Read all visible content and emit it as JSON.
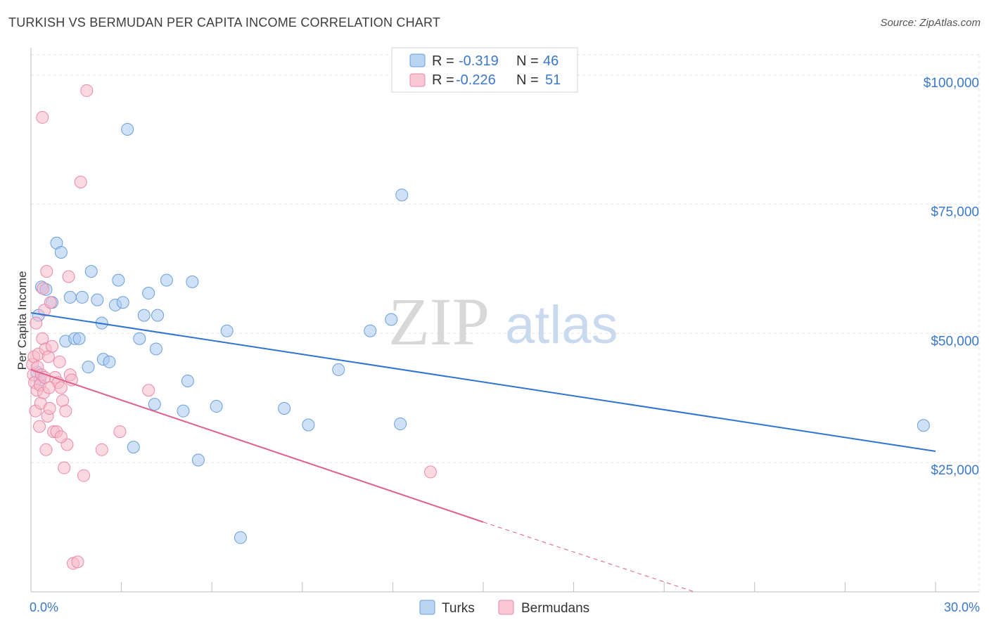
{
  "header": {
    "title": "TURKISH VS BERMUDAN PER CAPITA INCOME CORRELATION CHART",
    "source": "Source: ZipAtlas.com"
  },
  "watermark": {
    "zip": "ZIP",
    "atlas": "atlas"
  },
  "legend": {
    "r_label": "R =",
    "n_label": "N =",
    "rows": [
      {
        "name": "Turks",
        "r": "-0.319",
        "n": "46",
        "color": "#a8c8f0"
      },
      {
        "name": "Bermudans",
        "r": "-0.226",
        "n": "51",
        "color": "#f7b9cc"
      }
    ]
  },
  "colors": {
    "turks_fill": "#a8c8f0",
    "turks_stroke": "#6a9fdb",
    "turks_line": "#2f74d0",
    "bermudans_fill": "#f7b9cc",
    "bermudans_stroke": "#e98aa8",
    "bermudans_line": "#e0608a",
    "tick_text": "#3b78c9",
    "grid": "#e4e4e4"
  },
  "chart_data": {
    "type": "scatter",
    "title": "TURKISH VS BERMUDAN PER CAPITA INCOME CORRELATION CHART",
    "xlabel": "",
    "ylabel": "Per Capita Income",
    "xlim": [
      0,
      30
    ],
    "ylim": [
      0,
      105000
    ],
    "x_tick_labels": [
      "0.0%",
      "30.0%"
    ],
    "y_ticks": [
      25000,
      50000,
      75000,
      100000
    ],
    "y_tick_labels": [
      "$25,000",
      "$50,000",
      "$75,000",
      "$100,000"
    ],
    "grid": true,
    "legend_position": "top-center",
    "series": [
      {
        "name": "Turks",
        "points": [
          [
            0.25,
            53500
          ],
          [
            0.35,
            59000
          ],
          [
            0.5,
            58500
          ],
          [
            0.7,
            56000
          ],
          [
            0.85,
            67500
          ],
          [
            1.0,
            65700
          ],
          [
            1.15,
            48500
          ],
          [
            1.3,
            57000
          ],
          [
            1.45,
            49000
          ],
          [
            1.6,
            49000
          ],
          [
            1.7,
            57000
          ],
          [
            1.9,
            43500
          ],
          [
            2.0,
            62000
          ],
          [
            2.2,
            56500
          ],
          [
            2.35,
            52000
          ],
          [
            2.4,
            45000
          ],
          [
            2.6,
            44500
          ],
          [
            2.8,
            55500
          ],
          [
            2.9,
            60300
          ],
          [
            3.05,
            56000
          ],
          [
            3.2,
            89500
          ],
          [
            3.4,
            28000
          ],
          [
            3.6,
            49000
          ],
          [
            3.75,
            53500
          ],
          [
            3.9,
            57800
          ],
          [
            4.2,
            53500
          ],
          [
            4.1,
            36300
          ],
          [
            4.15,
            47000
          ],
          [
            4.5,
            60300
          ],
          [
            5.05,
            35000
          ],
          [
            5.2,
            40800
          ],
          [
            5.35,
            60000
          ],
          [
            5.55,
            25500
          ],
          [
            6.15,
            35900
          ],
          [
            6.5,
            50500
          ],
          [
            6.95,
            10500
          ],
          [
            8.4,
            35500
          ],
          [
            9.2,
            32300
          ],
          [
            10.2,
            43000
          ],
          [
            11.25,
            50500
          ],
          [
            11.95,
            52700
          ],
          [
            12.25,
            32500
          ],
          [
            12.3,
            76800
          ],
          [
            29.6,
            32200
          ],
          [
            0.2,
            42500
          ],
          [
            0.3,
            41000
          ]
        ]
      },
      {
        "name": "Bermudans",
        "points": [
          [
            0.05,
            44000
          ],
          [
            0.08,
            42000
          ],
          [
            0.1,
            45500
          ],
          [
            0.12,
            40500
          ],
          [
            0.15,
            35000
          ],
          [
            0.17,
            52000
          ],
          [
            0.2,
            39000
          ],
          [
            0.22,
            43500
          ],
          [
            0.25,
            46000
          ],
          [
            0.28,
            32000
          ],
          [
            0.3,
            40000
          ],
          [
            0.32,
            36500
          ],
          [
            0.35,
            42000
          ],
          [
            0.38,
            49000
          ],
          [
            0.4,
            58700
          ],
          [
            0.42,
            38500
          ],
          [
            0.45,
            54500
          ],
          [
            0.48,
            47000
          ],
          [
            0.5,
            27500
          ],
          [
            0.52,
            62000
          ],
          [
            0.55,
            34000
          ],
          [
            0.58,
            45500
          ],
          [
            0.62,
            35500
          ],
          [
            0.65,
            56000
          ],
          [
            0.7,
            47500
          ],
          [
            0.75,
            31000
          ],
          [
            0.8,
            41500
          ],
          [
            0.85,
            31000
          ],
          [
            0.9,
            40500
          ],
          [
            0.95,
            44500
          ],
          [
            1.0,
            39500
          ],
          [
            1.05,
            37000
          ],
          [
            1.1,
            24000
          ],
          [
            1.15,
            35000
          ],
          [
            1.2,
            28500
          ],
          [
            1.25,
            61000
          ],
          [
            1.3,
            42000
          ],
          [
            1.35,
            41000
          ],
          [
            1.4,
            5500
          ],
          [
            1.55,
            5800
          ],
          [
            1.65,
            79300
          ],
          [
            1.75,
            22500
          ],
          [
            2.35,
            27500
          ],
          [
            2.95,
            31000
          ],
          [
            3.9,
            39000
          ],
          [
            1.85,
            97000
          ],
          [
            0.38,
            91800
          ],
          [
            13.25,
            23200
          ],
          [
            0.6,
            39500
          ],
          [
            1.0,
            30000
          ],
          [
            0.45,
            41500
          ]
        ]
      }
    ],
    "trend_lines": [
      {
        "series": "Turks",
        "x": [
          0,
          30
        ],
        "y": [
          54000,
          27200
        ]
      },
      {
        "series": "Bermudans",
        "x": [
          0,
          15
        ],
        "y": [
          43000,
          13500
        ],
        "dashed_extension": {
          "x": [
            15,
            22.0
          ],
          "y": [
            13500,
            0
          ]
        }
      }
    ]
  }
}
